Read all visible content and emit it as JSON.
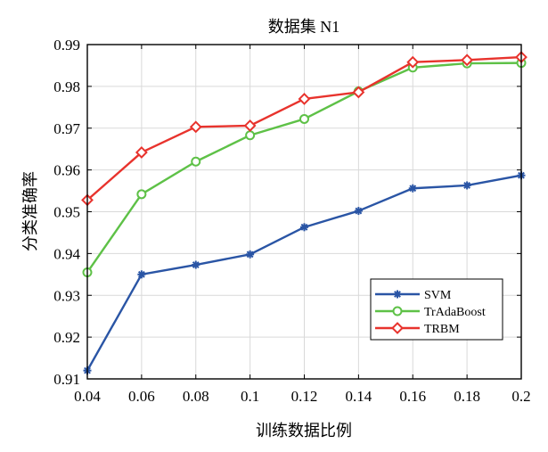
{
  "chart_data": {
    "type": "line",
    "title": "数据集 N1",
    "xlabel": "训练数据比例",
    "ylabel": "分类准确率",
    "x": [
      0.04,
      0.06,
      0.08,
      0.1,
      0.12,
      0.14,
      0.16,
      0.18,
      0.2
    ],
    "x_tick_labels": [
      "0.04",
      "0.06",
      "0.08",
      "0.1",
      "0.12",
      "0.14",
      "0.16",
      "0.18",
      "0.2"
    ],
    "xlim": [
      0.04,
      0.2
    ],
    "ylim": [
      0.91,
      0.99
    ],
    "y_ticks": [
      0.91,
      0.92,
      0.93,
      0.94,
      0.95,
      0.96,
      0.97,
      0.98,
      0.99
    ],
    "y_tick_labels": [
      "0.91",
      "0.92",
      "0.93",
      "0.94",
      "0.95",
      "0.96",
      "0.97",
      "0.98",
      "0.99"
    ],
    "grid": true,
    "legend_position": "bottom-right",
    "series": [
      {
        "name": "SVM",
        "color": "#2a55a5",
        "marker": "star",
        "values": [
          0.912,
          0.935,
          0.9373,
          0.9398,
          0.9463,
          0.9502,
          0.9556,
          0.9563,
          0.9587
        ]
      },
      {
        "name": "TrAdaBoost",
        "color": "#5ec147",
        "marker": "circle",
        "values": [
          0.9355,
          0.9542,
          0.962,
          0.9683,
          0.9722,
          0.9788,
          0.9845,
          0.9855,
          0.9856
        ]
      },
      {
        "name": "TRBM",
        "color": "#e8332d",
        "marker": "diamond",
        "values": [
          0.9528,
          0.9642,
          0.9703,
          0.9706,
          0.977,
          0.9786,
          0.9858,
          0.9863,
          0.987
        ]
      }
    ]
  }
}
